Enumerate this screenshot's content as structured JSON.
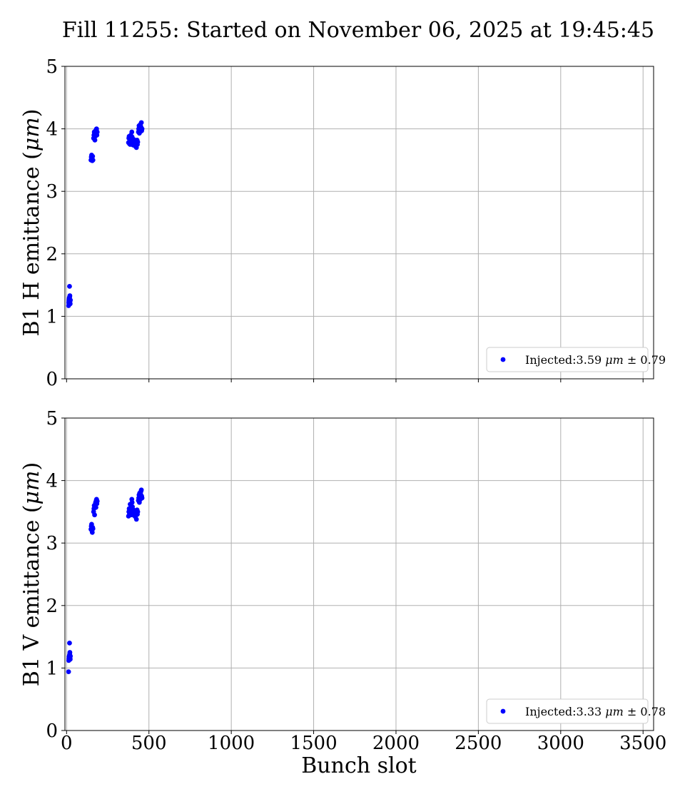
{
  "figure": {
    "title": "Fill 11255: Started on November 06, 2025 at 19:45:45",
    "xlabel": "Bunch slot",
    "colors": {
      "points": "#0000ff",
      "grid": "#b0b0b0",
      "axes": "#000000",
      "legend_border": "#cccccc"
    }
  },
  "chart_data": [
    {
      "type": "scatter",
      "ylabel": "B1 H emittance (μm)",
      "ylabel_prefix": "B1 H emittance (",
      "ylabel_unit": "μm",
      "ylabel_suffix": ")",
      "xlim": [
        -10,
        3564
      ],
      "ylim": [
        0,
        5
      ],
      "x_ticks": [
        0,
        500,
        1000,
        1500,
        2000,
        2500,
        3000,
        3500
      ],
      "x_tick_labels_shown": false,
      "y_ticks": [
        0,
        1,
        2,
        3,
        4,
        5
      ],
      "grid": true,
      "legend_position": "lower-right",
      "series": [
        {
          "name": "Injected:3.59 μm ± 0.79",
          "legend_prefix": "Injected:3.59 ",
          "legend_unit": "μm",
          "legend_suffix": " ± 0.79",
          "color": "#0000ff",
          "points": [
            [
              12,
              1.17
            ],
            [
              13,
              1.22
            ],
            [
              14,
              1.25
            ],
            [
              15,
              1.27
            ],
            [
              16,
              1.29
            ],
            [
              17,
              1.3
            ],
            [
              18,
              1.48
            ],
            [
              19,
              1.31
            ],
            [
              20,
              1.33
            ],
            [
              21,
              1.24
            ],
            [
              22,
              1.2
            ],
            [
              23,
              1.26
            ],
            [
              148,
              3.5
            ],
            [
              150,
              3.55
            ],
            [
              152,
              3.58
            ],
            [
              154,
              3.52
            ],
            [
              156,
              3.49
            ],
            [
              158,
              3.56
            ],
            [
              160,
              3.5
            ],
            [
              164,
              3.85
            ],
            [
              166,
              3.9
            ],
            [
              168,
              3.95
            ],
            [
              170,
              3.92
            ],
            [
              172,
              3.82
            ],
            [
              174,
              3.88
            ],
            [
              176,
              3.97
            ],
            [
              178,
              3.93
            ],
            [
              180,
              3.99
            ],
            [
              182,
              4.0
            ],
            [
              184,
              3.9
            ],
            [
              186,
              3.95
            ],
            [
              376,
              3.78
            ],
            [
              378,
              3.85
            ],
            [
              380,
              3.88
            ],
            [
              382,
              3.76
            ],
            [
              384,
              3.8
            ],
            [
              386,
              3.75
            ],
            [
              388,
              3.82
            ],
            [
              390,
              3.9
            ],
            [
              392,
              3.78
            ],
            [
              396,
              3.95
            ],
            [
              398,
              3.87
            ],
            [
              400,
              3.8
            ],
            [
              402,
              3.77
            ],
            [
              404,
              3.74
            ],
            [
              406,
              3.79
            ],
            [
              408,
              3.83
            ],
            [
              410,
              3.76
            ],
            [
              412,
              3.81
            ],
            [
              416,
              3.76
            ],
            [
              418,
              3.72
            ],
            [
              420,
              3.8
            ],
            [
              422,
              3.74
            ],
            [
              424,
              3.7
            ],
            [
              426,
              3.78
            ],
            [
              428,
              3.82
            ],
            [
              430,
              3.75
            ],
            [
              432,
              3.79
            ],
            [
              436,
              3.95
            ],
            [
              438,
              4.0
            ],
            [
              440,
              4.05
            ],
            [
              442,
              3.93
            ],
            [
              444,
              4.02
            ],
            [
              446,
              3.98
            ],
            [
              448,
              4.07
            ],
            [
              450,
              3.96
            ],
            [
              452,
              4.03
            ],
            [
              454,
              4.1
            ],
            [
              456,
              3.97
            ],
            [
              458,
              4.0
            ]
          ]
        }
      ]
    },
    {
      "type": "scatter",
      "ylabel": "B1 V emittance (μm)",
      "ylabel_prefix": "B1 V emittance (",
      "ylabel_unit": "μm",
      "ylabel_suffix": ")",
      "xlim": [
        -10,
        3564
      ],
      "ylim": [
        0,
        5
      ],
      "x_ticks": [
        0,
        500,
        1000,
        1500,
        2000,
        2500,
        3000,
        3500
      ],
      "x_tick_labels_shown": true,
      "y_ticks": [
        0,
        1,
        2,
        3,
        4,
        5
      ],
      "grid": true,
      "legend_position": "lower-right",
      "series": [
        {
          "name": "Injected:3.33 μm ± 0.78",
          "legend_prefix": "Injected:3.33 ",
          "legend_unit": "μm",
          "legend_suffix": " ± 0.78",
          "color": "#0000ff",
          "points": [
            [
              12,
              0.94
            ],
            [
              13,
              1.12
            ],
            [
              14,
              1.15
            ],
            [
              15,
              1.18
            ],
            [
              16,
              1.13
            ],
            [
              17,
              1.2
            ],
            [
              18,
              1.4
            ],
            [
              19,
              1.22
            ],
            [
              20,
              1.25
            ],
            [
              21,
              1.16
            ],
            [
              22,
              1.14
            ],
            [
              23,
              1.19
            ],
            [
              148,
              3.22
            ],
            [
              150,
              3.27
            ],
            [
              152,
              3.3
            ],
            [
              154,
              3.2
            ],
            [
              156,
              3.17
            ],
            [
              158,
              3.25
            ],
            [
              160,
              3.23
            ],
            [
              164,
              3.5
            ],
            [
              166,
              3.55
            ],
            [
              168,
              3.6
            ],
            [
              170,
              3.45
            ],
            [
              172,
              3.58
            ],
            [
              174,
              3.62
            ],
            [
              176,
              3.65
            ],
            [
              178,
              3.57
            ],
            [
              180,
              3.68
            ],
            [
              182,
              3.7
            ],
            [
              184,
              3.63
            ],
            [
              186,
              3.67
            ],
            [
              376,
              3.43
            ],
            [
              378,
              3.5
            ],
            [
              380,
              3.55
            ],
            [
              382,
              3.47
            ],
            [
              384,
              3.52
            ],
            [
              386,
              3.62
            ],
            [
              388,
              3.48
            ],
            [
              390,
              3.56
            ],
            [
              392,
              3.45
            ],
            [
              396,
              3.7
            ],
            [
              398,
              3.65
            ],
            [
              400,
              3.58
            ],
            [
              402,
              3.5
            ],
            [
              404,
              3.46
            ],
            [
              406,
              3.53
            ],
            [
              408,
              3.49
            ],
            [
              410,
              3.44
            ],
            [
              412,
              3.51
            ],
            [
              416,
              3.47
            ],
            [
              418,
              3.42
            ],
            [
              420,
              3.5
            ],
            [
              422,
              3.45
            ],
            [
              424,
              3.38
            ],
            [
              426,
              3.48
            ],
            [
              428,
              3.53
            ],
            [
              430,
              3.46
            ],
            [
              432,
              3.5
            ],
            [
              436,
              3.68
            ],
            [
              438,
              3.72
            ],
            [
              440,
              3.77
            ],
            [
              442,
              3.65
            ],
            [
              444,
              3.8
            ],
            [
              446,
              3.74
            ],
            [
              448,
              3.7
            ],
            [
              450,
              3.78
            ],
            [
              452,
              3.83
            ],
            [
              454,
              3.85
            ],
            [
              456,
              3.75
            ],
            [
              458,
              3.72
            ]
          ]
        }
      ]
    }
  ]
}
